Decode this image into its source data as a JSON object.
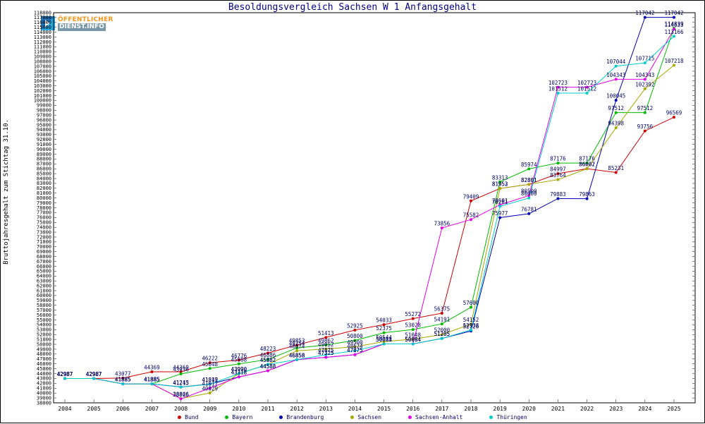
{
  "logo": {
    "line1": "ÖFFENTLICHER",
    "line2": "DIENST.INFO"
  },
  "chart_data": {
    "type": "line",
    "title": "Besoldungsvergleich Sachsen W 1 Anfangsgehalt",
    "ylabel": "Bruttojahresgehalt zum Stichtag 31.10.",
    "xlabel": "",
    "ylim": [
      38000,
      118000
    ],
    "ystep": 1000,
    "grid": false,
    "legend_position": "bottom",
    "x": [
      2004,
      2005,
      2006,
      2007,
      2008,
      2009,
      2010,
      2011,
      2012,
      2013,
      2014,
      2015,
      2016,
      2017,
      2018,
      2019,
      2020,
      2021,
      2022,
      2023,
      2024,
      2025
    ],
    "series": [
      {
        "name": "Bund",
        "color": "#cc0000",
        "values": [
          42987,
          42987,
          43077,
          44369,
          44369,
          46222,
          46776,
          48223,
          49853,
          51413,
          52925,
          54033,
          55272,
          56375,
          79409,
          81952,
          82801,
          84997,
          86002,
          85231,
          93756,
          96569
        ]
      },
      {
        "name": "Bayern",
        "color": "#00bb00",
        "values": [
          42987,
          42987,
          41885,
          41885,
          43936,
          45048,
          45988,
          46886,
          49254,
          49862,
          50800,
          52375,
          53028,
          54191,
          57600,
          83313,
          85974,
          87176,
          87176,
          97512,
          97512,
          114839
        ]
      },
      {
        "name": "Brandenburg",
        "color": "#0000b4",
        "values": [
          42987,
          42987,
          41885,
          41885,
          41243,
          41849,
          43318,
          44588,
          46858,
          47325,
          47875,
          50073,
          50084,
          51205,
          52726,
          75977,
          76781,
          79883,
          79863,
          100045,
          117042,
          117042
        ]
      },
      {
        "name": "Sachsen",
        "color": "#a8a800",
        "values": [
          42987,
          42987,
          41885,
          41885,
          38866,
          40029,
          43990,
          45882,
          48674,
          49052,
          49500,
          50544,
          51048,
          52000,
          54152,
          81953,
          82801,
          83764,
          86007,
          94398,
          102392,
          107218
        ]
      },
      {
        "name": "Sachsen-Anhalt",
        "color": "#e600e6",
        "values": [
          42987,
          42987,
          41885,
          41885,
          38826,
          41017,
          43318,
          44588,
          46858,
          47325,
          47875,
          50084,
          50084,
          73856,
          75582,
          78601,
          80500,
          102723,
          102723,
          104343,
          104343,
          114633
        ]
      },
      {
        "name": "Thüringen",
        "color": "#00cccc",
        "values": [
          42987,
          42987,
          41885,
          41885,
          41215,
          41817,
          43990,
          45882,
          46858,
          47875,
          48674,
          50073,
          50084,
          51205,
          52938,
          78281,
          80000,
          101512,
          101512,
          107044,
          107715,
          113166
        ]
      }
    ]
  }
}
